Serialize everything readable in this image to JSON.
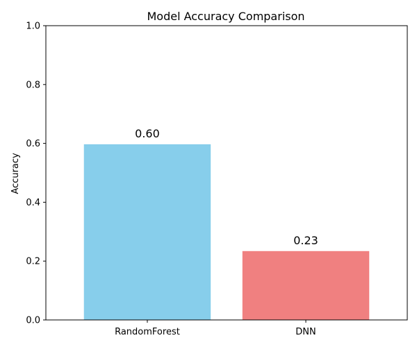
{
  "chart_data": {
    "type": "bar",
    "title": "Model Accuracy Comparison",
    "xlabel": "",
    "ylabel": "Accuracy",
    "categories": [
      "RandomForest",
      "DNN"
    ],
    "values": [
      0.597,
      0.234
    ],
    "value_labels": [
      "0.60",
      "0.23"
    ],
    "colors": [
      "#87CEEB",
      "#F08080"
    ],
    "ylim": [
      0,
      1.0
    ],
    "yticks": [
      0.0,
      0.2,
      0.4,
      0.6,
      0.8,
      1.0
    ],
    "ytick_labels": [
      "0.0",
      "0.2",
      "0.4",
      "0.6",
      "0.8",
      "1.0"
    ],
    "grid": false,
    "legend": false
  }
}
